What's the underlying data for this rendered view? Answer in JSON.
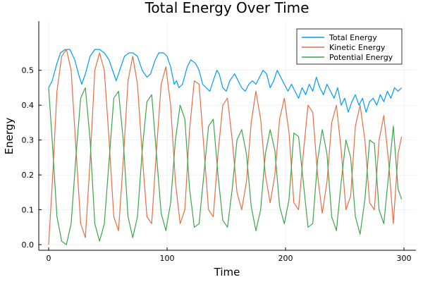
{
  "chart_data": {
    "type": "line",
    "title": "Total Energy Over Time",
    "xlabel": "Time",
    "ylabel": "Energy",
    "xlim": [
      0,
      300
    ],
    "ylim": [
      0.0,
      0.55
    ],
    "xticks": [
      0,
      100,
      200,
      300
    ],
    "yticks": [
      0.0,
      0.1,
      0.2,
      0.3,
      0.4,
      0.5
    ],
    "xtick_labels": [
      "0",
      "100",
      "200",
      "300"
    ],
    "ytick_labels": [
      "0.0",
      "0.1",
      "0.2",
      "0.3",
      "0.4",
      "0.5"
    ],
    "grid": true,
    "legend_position": "top-right",
    "series": [
      {
        "name": "Total Energy",
        "color": "#009af9",
        "x": [
          0,
          3,
          7,
          10,
          14,
          18,
          22,
          26,
          28,
          31,
          35,
          39,
          43,
          47,
          51,
          55,
          57,
          60,
          64,
          68,
          71,
          75,
          79,
          83,
          86,
          90,
          93,
          97,
          100,
          103,
          106,
          108,
          110,
          113,
          117,
          120,
          124,
          127,
          130,
          133,
          136,
          139,
          142,
          144,
          147,
          150,
          153,
          157,
          160,
          163,
          166,
          169,
          172,
          175,
          178,
          181,
          184,
          187,
          190,
          193,
          196,
          199,
          202,
          205,
          208,
          211,
          214,
          217,
          220,
          223,
          226,
          229,
          232,
          235,
          238,
          241,
          244,
          247,
          250,
          253,
          256,
          259,
          262,
          265,
          268,
          271,
          274,
          277,
          280,
          283,
          286,
          289,
          292,
          295,
          298
        ],
        "y": [
          0.45,
          0.47,
          0.52,
          0.55,
          0.56,
          0.56,
          0.53,
          0.48,
          0.46,
          0.49,
          0.54,
          0.56,
          0.56,
          0.55,
          0.53,
          0.49,
          0.47,
          0.5,
          0.54,
          0.55,
          0.55,
          0.54,
          0.5,
          0.48,
          0.49,
          0.53,
          0.55,
          0.55,
          0.54,
          0.51,
          0.46,
          0.47,
          0.45,
          0.46,
          0.51,
          0.53,
          0.52,
          0.5,
          0.46,
          0.45,
          0.44,
          0.47,
          0.5,
          0.49,
          0.45,
          0.44,
          0.47,
          0.49,
          0.47,
          0.45,
          0.44,
          0.46,
          0.47,
          0.46,
          0.48,
          0.5,
          0.49,
          0.45,
          0.47,
          0.5,
          0.48,
          0.46,
          0.44,
          0.46,
          0.44,
          0.42,
          0.45,
          0.43,
          0.46,
          0.44,
          0.48,
          0.45,
          0.43,
          0.46,
          0.44,
          0.42,
          0.45,
          0.4,
          0.42,
          0.38,
          0.41,
          0.43,
          0.4,
          0.42,
          0.38,
          0.41,
          0.42,
          0.4,
          0.43,
          0.41,
          0.44,
          0.42,
          0.45,
          0.44,
          0.45
        ]
      },
      {
        "name": "Kinetic Energy",
        "color": "#e26f46",
        "x": [
          0,
          3,
          7,
          11,
          15,
          19,
          23,
          27,
          31,
          35,
          39,
          43,
          47,
          51,
          55,
          59,
          63,
          67,
          71,
          75,
          79,
          83,
          87,
          91,
          95,
          99,
          103,
          107,
          111,
          115,
          119,
          123,
          127,
          131,
          135,
          139,
          143,
          147,
          151,
          155,
          159,
          163,
          167,
          171,
          175,
          179,
          183,
          187,
          191,
          195,
          199,
          203,
          207,
          211,
          215,
          219,
          223,
          227,
          231,
          235,
          239,
          243,
          247,
          251,
          255,
          259,
          263,
          267,
          271,
          275,
          279,
          283,
          287,
          291,
          295,
          298
        ],
        "y": [
          0.0,
          0.17,
          0.44,
          0.54,
          0.56,
          0.5,
          0.28,
          0.06,
          0.02,
          0.24,
          0.5,
          0.55,
          0.5,
          0.3,
          0.08,
          0.04,
          0.24,
          0.47,
          0.54,
          0.46,
          0.26,
          0.08,
          0.06,
          0.27,
          0.46,
          0.51,
          0.4,
          0.18,
          0.06,
          0.1,
          0.33,
          0.47,
          0.46,
          0.28,
          0.1,
          0.08,
          0.26,
          0.4,
          0.42,
          0.3,
          0.15,
          0.1,
          0.18,
          0.35,
          0.44,
          0.36,
          0.2,
          0.12,
          0.2,
          0.36,
          0.42,
          0.32,
          0.12,
          0.1,
          0.26,
          0.4,
          0.38,
          0.2,
          0.09,
          0.18,
          0.35,
          0.4,
          0.27,
          0.1,
          0.14,
          0.34,
          0.4,
          0.3,
          0.12,
          0.1,
          0.3,
          0.37,
          0.24,
          0.06,
          0.26,
          0.31
        ]
      },
      {
        "name": "Potential Energy",
        "color": "#3da44d",
        "x": [
          0,
          3,
          7,
          11,
          15,
          19,
          23,
          27,
          31,
          35,
          39,
          43,
          47,
          51,
          55,
          59,
          63,
          67,
          71,
          75,
          79,
          83,
          87,
          91,
          95,
          99,
          103,
          107,
          111,
          115,
          119,
          123,
          127,
          131,
          135,
          139,
          143,
          147,
          151,
          155,
          159,
          163,
          167,
          171,
          175,
          179,
          183,
          187,
          191,
          195,
          199,
          203,
          207,
          211,
          215,
          219,
          223,
          227,
          231,
          235,
          239,
          243,
          247,
          251,
          255,
          259,
          263,
          267,
          271,
          275,
          279,
          283,
          287,
          291,
          295,
          298
        ],
        "y": [
          0.45,
          0.3,
          0.08,
          0.01,
          0.0,
          0.06,
          0.25,
          0.42,
          0.45,
          0.3,
          0.06,
          0.01,
          0.06,
          0.24,
          0.42,
          0.44,
          0.3,
          0.08,
          0.02,
          0.08,
          0.27,
          0.41,
          0.43,
          0.26,
          0.09,
          0.04,
          0.12,
          0.3,
          0.4,
          0.36,
          0.16,
          0.05,
          0.06,
          0.2,
          0.34,
          0.36,
          0.2,
          0.07,
          0.05,
          0.16,
          0.3,
          0.33,
          0.26,
          0.11,
          0.04,
          0.1,
          0.26,
          0.33,
          0.27,
          0.11,
          0.06,
          0.13,
          0.32,
          0.31,
          0.18,
          0.05,
          0.06,
          0.24,
          0.33,
          0.26,
          0.08,
          0.04,
          0.18,
          0.3,
          0.25,
          0.08,
          0.03,
          0.13,
          0.3,
          0.29,
          0.1,
          0.06,
          0.2,
          0.34,
          0.16,
          0.13
        ]
      }
    ]
  }
}
